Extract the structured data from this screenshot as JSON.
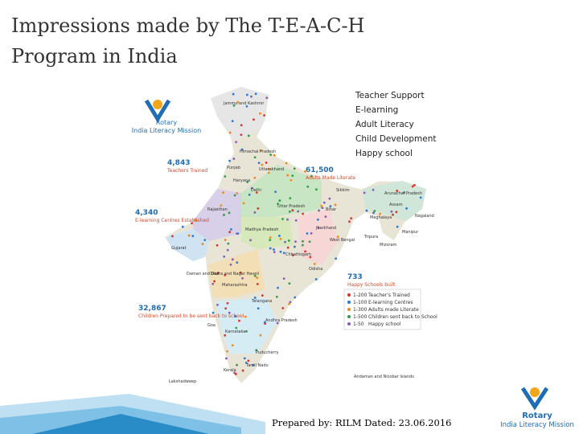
{
  "header": {
    "title_line1": "Impressions made by The T-E-A-C-H",
    "title_line2": "Program in India"
  },
  "logo_top": {
    "rotary": "Rotary",
    "mission": "India Literacy Mission"
  },
  "logo_bottom": {
    "rotary": "Rotary",
    "mission": "India Literacy Mission"
  },
  "teach": [
    "Teacher Support",
    "E-learning",
    "Adult Literacy",
    "Child Development",
    "Happy school"
  ],
  "stats": [
    {
      "number": "4,843",
      "label": "Teachers Trained"
    },
    {
      "number": "61,500",
      "label": "Adults Made Literate"
    },
    {
      "number": "4,340",
      "label": "E-learning Centres Established"
    },
    {
      "number": "733",
      "label": "Happy Schools built"
    },
    {
      "number": "32,867",
      "label": "Children Prepared to be sent back to school"
    }
  ],
  "legend": [
    {
      "range": "1-200",
      "label": "Teacher's Trained"
    },
    {
      "range": "1-100",
      "label": "E-learning Centres"
    },
    {
      "range": "1-300",
      "label": "Adults made Literate"
    },
    {
      "range": "1-500",
      "label": "Children sent back to School"
    },
    {
      "range": "1-50",
      "label": "Happy school"
    }
  ],
  "states": [
    "Jammu and Kashmir",
    "Himachal Pradesh",
    "Punjab",
    "Uttarakhand",
    "Haryana",
    "Delhi",
    "Rajasthan",
    "Uttar Pradesh",
    "Bihar",
    "Sikkim",
    "Arunachal Pradesh",
    "Assam",
    "Nagaland",
    "Meghalaya",
    "Manipur",
    "Tripura",
    "Mizoram",
    "Gujarat",
    "Madhya Pradesh",
    "Jharkhand",
    "West Bengal",
    "Chhattisgarh",
    "Odisha",
    "Maharashtra",
    "Daman and Diu",
    "Dadra and Nagar Haveli",
    "Telangana",
    "Goa",
    "Karnataka",
    "Andhra Pradesh",
    "Puducherry",
    "Kerala",
    "Tamil Nadu",
    "Lakshadweep",
    "Andaman and Nicobar Islands"
  ],
  "footer": "Prepared by: RILM Dated: 23.06.2016"
}
